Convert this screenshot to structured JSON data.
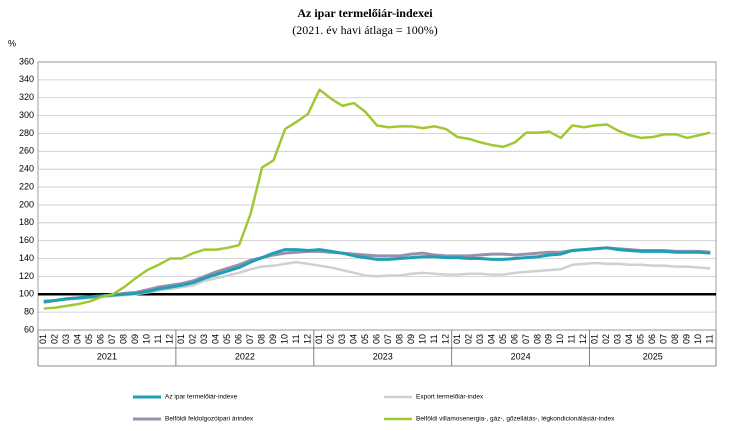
{
  "chart_data": {
    "type": "line",
    "title": "Az ipar termelőiár-indexei",
    "subtitle": "(2021. év havi átlaga = 100%)",
    "y_unit": "%",
    "categories": [
      "01",
      "02",
      "03",
      "04",
      "05",
      "06",
      "07",
      "08",
      "09",
      "10",
      "11",
      "12",
      "01",
      "02",
      "03",
      "04",
      "05",
      "06",
      "07",
      "08",
      "09",
      "10",
      "11",
      "12",
      "01",
      "02",
      "03",
      "04",
      "05",
      "06",
      "07",
      "08",
      "09",
      "10",
      "11",
      "12",
      "01",
      "02",
      "03",
      "04",
      "05",
      "06",
      "07",
      "08",
      "09",
      "10",
      "11",
      "12",
      "01",
      "02",
      "03",
      "04",
      "05",
      "06",
      "07",
      "08",
      "09",
      "10",
      "11"
    ],
    "x_groups": [
      "2021",
      "2022",
      "2023",
      "2024",
      "2025"
    ],
    "ylim": [
      60,
      360
    ],
    "yticks": [
      60,
      80,
      100,
      120,
      140,
      160,
      180,
      200,
      220,
      240,
      260,
      280,
      300,
      320,
      340,
      360
    ],
    "grid": true,
    "reference_line": 100,
    "series": [
      {
        "name": "Az ipar termelőiár-indexe",
        "color": "#1f9fb5",
        "width": 3,
        "values": [
          92,
          93,
          95,
          96,
          97,
          98,
          99,
          100,
          101,
          103,
          106,
          108,
          110,
          113,
          118,
          122,
          126,
          130,
          136,
          141,
          146,
          150,
          150,
          149,
          150,
          148,
          146,
          143,
          141,
          139,
          139,
          140,
          141,
          142,
          142,
          141,
          141,
          140,
          140,
          139,
          139,
          140,
          141,
          142,
          144,
          145,
          149,
          150,
          151,
          152,
          150,
          149,
          148,
          148,
          148,
          147,
          147,
          147,
          146
        ]
      },
      {
        "name": "Export termelőiár-index",
        "color": "#d0d0d0",
        "width": 2.5,
        "values": [
          92,
          93,
          94,
          95,
          96,
          97,
          98,
          99,
          100,
          102,
          104,
          106,
          108,
          110,
          115,
          118,
          121,
          124,
          128,
          131,
          132,
          134,
          136,
          134,
          132,
          130,
          127,
          124,
          121,
          120,
          121,
          121,
          123,
          124,
          123,
          122,
          122,
          123,
          123,
          122,
          122,
          124,
          125,
          126,
          127,
          128,
          133,
          134,
          135,
          134,
          134,
          133,
          133,
          132,
          132,
          131,
          131,
          130,
          129
        ]
      },
      {
        "name": "Belföldi feldolgozóipari árindex",
        "color": "#9b90aa",
        "width": 3,
        "values": [
          91,
          93,
          95,
          96,
          97,
          98,
          99,
          101,
          102,
          105,
          108,
          110,
          112,
          115,
          120,
          125,
          129,
          133,
          138,
          141,
          144,
          146,
          147,
          148,
          148,
          147,
          146,
          145,
          144,
          143,
          143,
          143,
          145,
          146,
          144,
          143,
          143,
          143,
          144,
          145,
          145,
          144,
          145,
          146,
          147,
          147,
          149,
          150,
          151,
          152,
          151,
          150,
          149,
          149,
          149,
          148,
          148,
          148,
          147
        ]
      },
      {
        "name": "Belföldi villamosenergia-, gáz-, gőzellátás-, légkondicionálásiár-index",
        "color": "#a0c832",
        "width": 2.5,
        "values": [
          84,
          85,
          87,
          89,
          92,
          97,
          100,
          108,
          118,
          127,
          133,
          140,
          140,
          146,
          150,
          150,
          152,
          155,
          190,
          242,
          250,
          285,
          293,
          302,
          329,
          319,
          311,
          314,
          304,
          289,
          287,
          288,
          288,
          286,
          288,
          285,
          276,
          274,
          270,
          267,
          265,
          270,
          281,
          281,
          282,
          275,
          289,
          287,
          289,
          290,
          283,
          278,
          275,
          276,
          279,
          279,
          275,
          278,
          281
        ]
      }
    ]
  }
}
